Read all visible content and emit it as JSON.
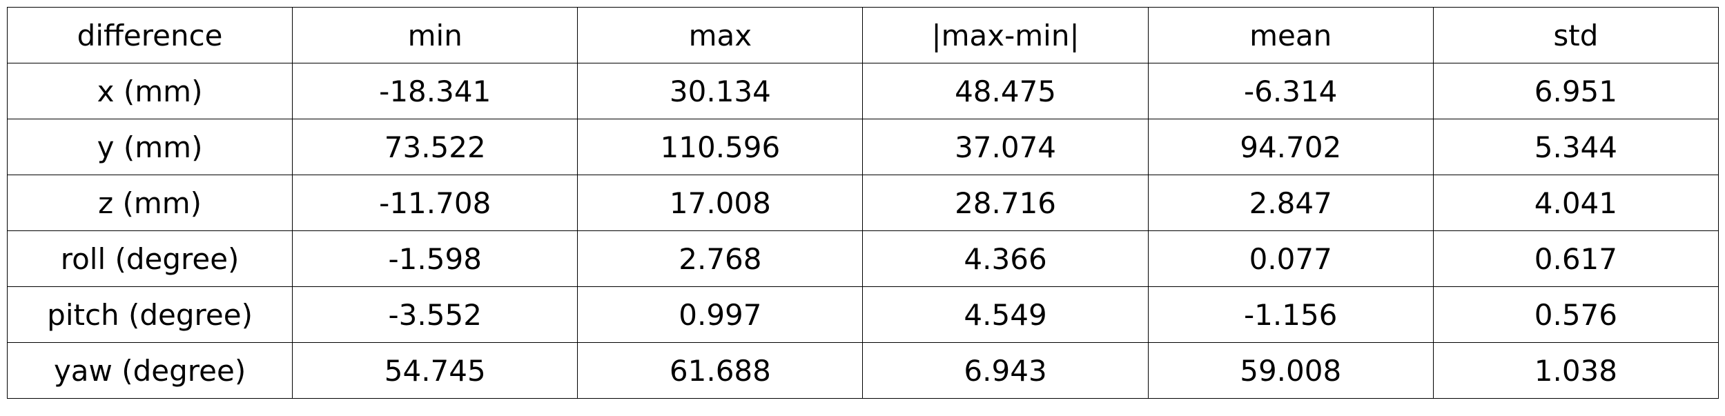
{
  "chart_data": {
    "type": "table",
    "columns": [
      "difference",
      "min",
      "max",
      "|max-min|",
      "mean",
      "std"
    ],
    "rows": [
      [
        "x (mm)",
        "-18.341",
        "30.134",
        "48.475",
        "-6.314",
        "6.951"
      ],
      [
        "y (mm)",
        "73.522",
        "110.596",
        "37.074",
        "94.702",
        "5.344"
      ],
      [
        "z (mm)",
        "-11.708",
        "17.008",
        "28.716",
        "2.847",
        "4.041"
      ],
      [
        "roll (degree)",
        "-1.598",
        "2.768",
        "4.366",
        "0.077",
        "0.617"
      ],
      [
        "pitch (degree)",
        "-3.552",
        "0.997",
        "4.549",
        "-1.156",
        "0.576"
      ],
      [
        "yaw (degree)",
        "54.745",
        "61.688",
        "6.943",
        "59.008",
        "1.038"
      ]
    ]
  }
}
